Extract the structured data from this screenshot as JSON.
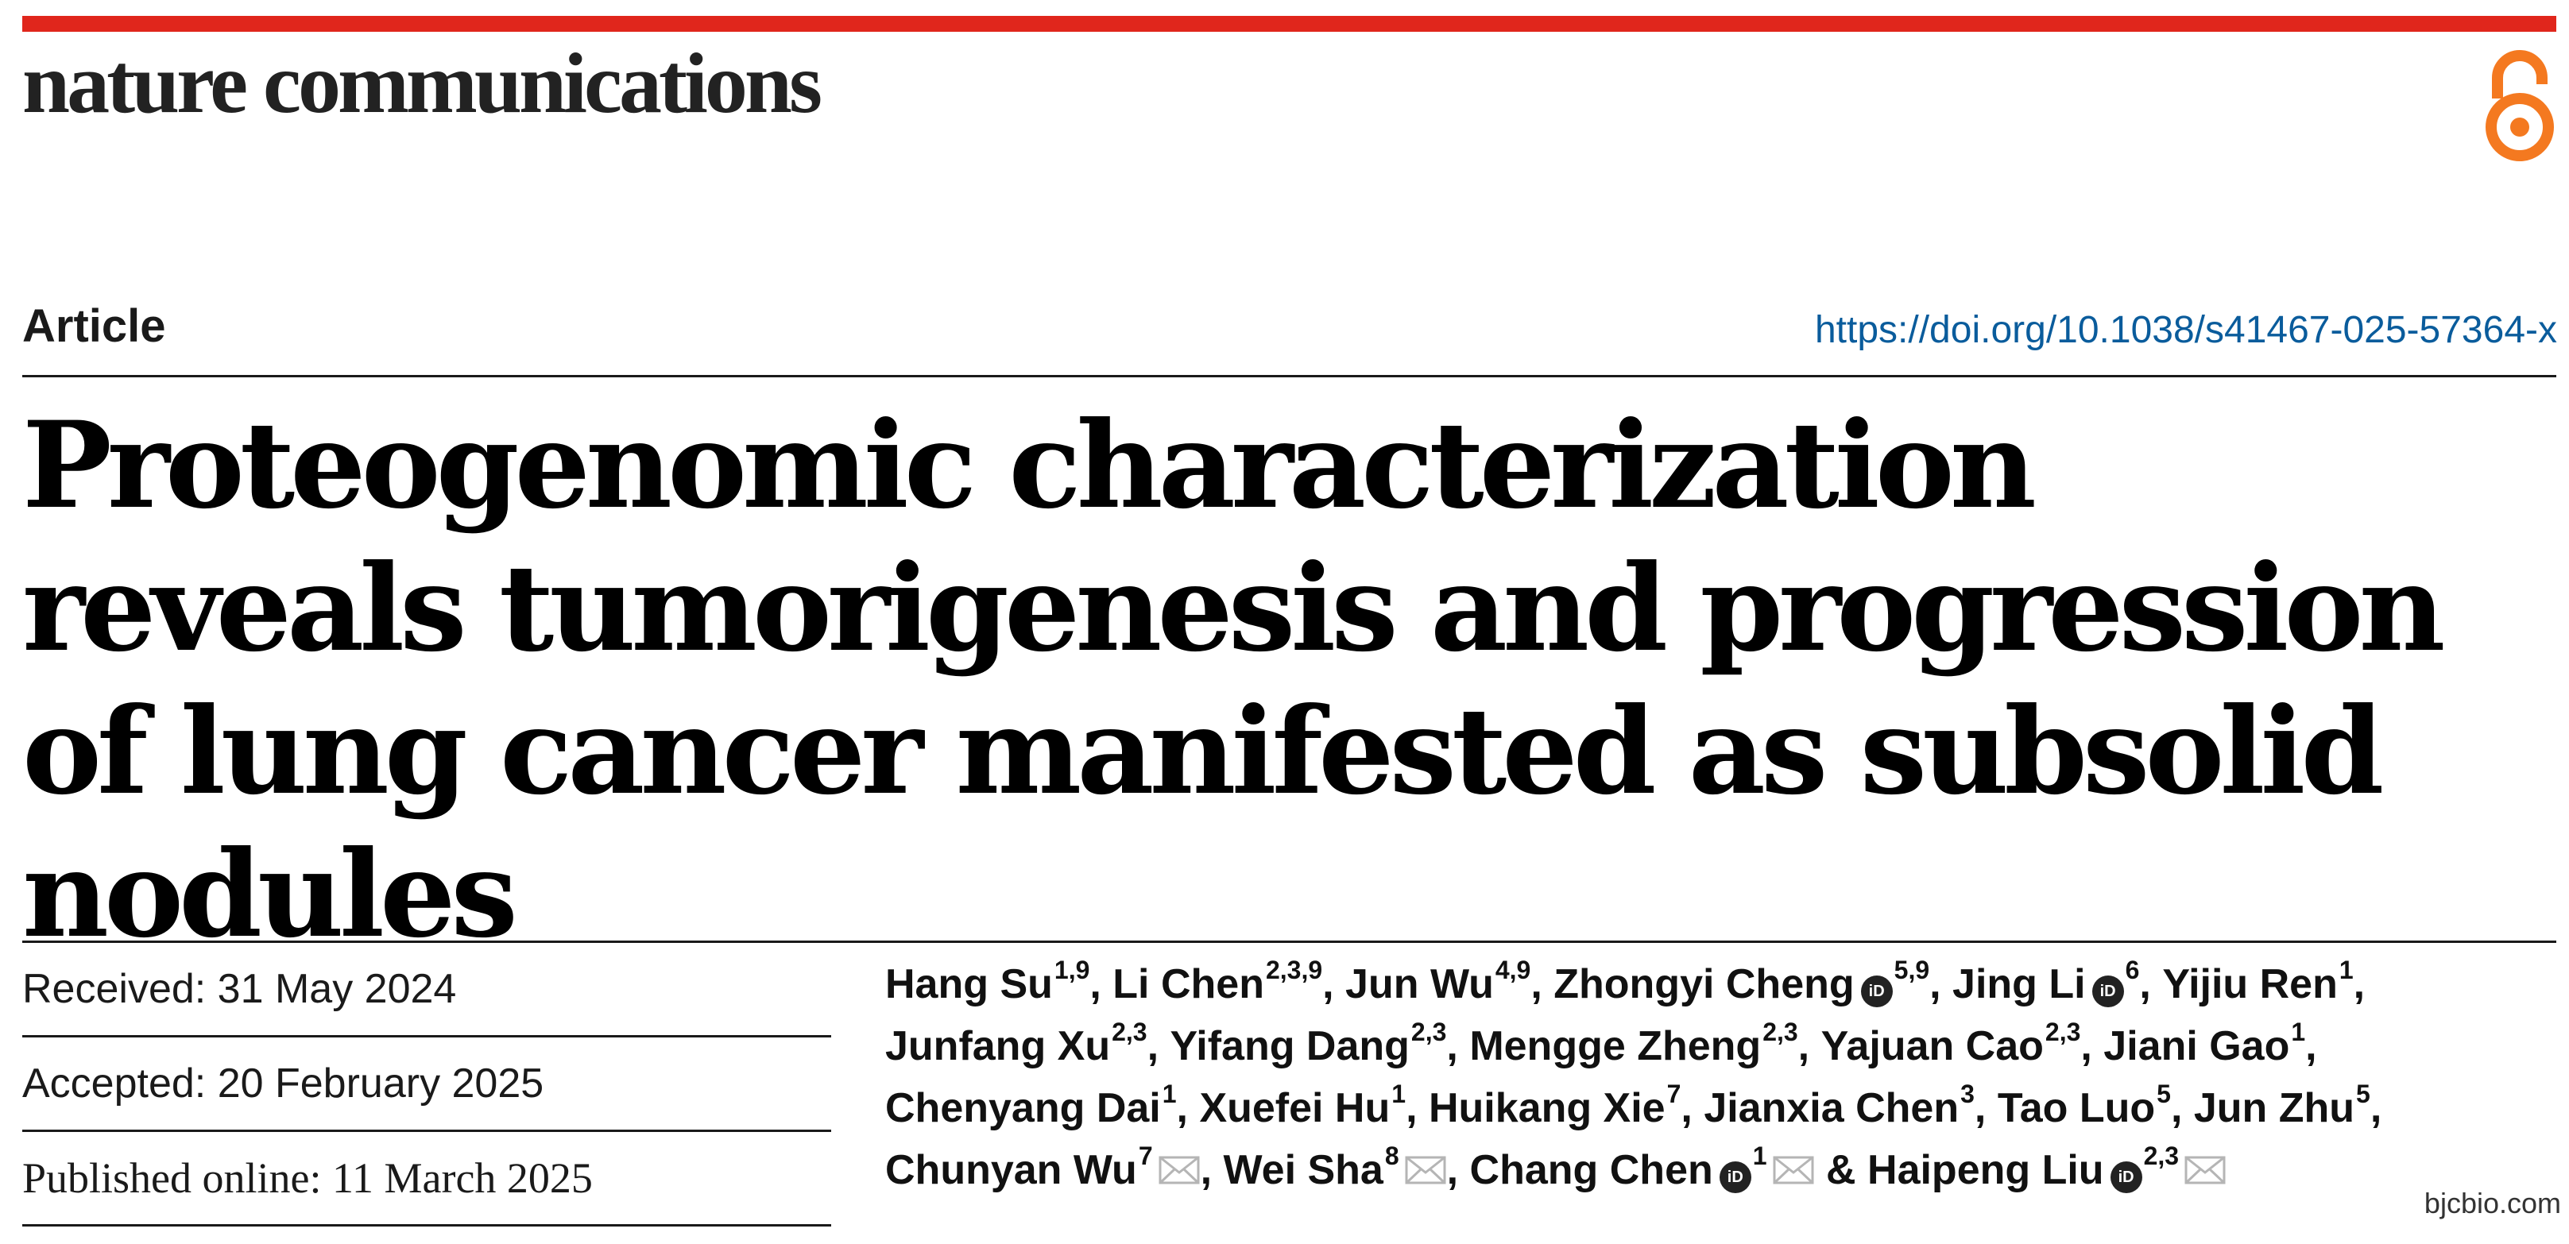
{
  "header": {
    "journal_name": "nature communications",
    "open_access_icon": "open-access-lock-icon",
    "bar_color": "#e0261c",
    "oa_color": "#f47920"
  },
  "article": {
    "type": "Article",
    "doi": "https://doi.org/10.1038/s41467-025-57364-x",
    "doi_color": "#0a5c9c",
    "title": "Proteogenomic characterization reveals tumorigenesis and progression of lung cancer manifested as subsolid nodules"
  },
  "dates": {
    "received": "Received: 31 May 2024",
    "accepted": "Accepted: 20 February 2025",
    "published": "Published online: 11 March 2025"
  },
  "authors": [
    {
      "name": "Hang Su",
      "aff": "1,9",
      "sep": ", "
    },
    {
      "name": "Li Chen",
      "aff": "2,3,9",
      "sep": ", "
    },
    {
      "name": "Jun Wu",
      "aff": "4,9",
      "sep": ", "
    },
    {
      "name": "Zhongyi Cheng",
      "aff": "5,9",
      "orcid": true,
      "sep": ", "
    },
    {
      "name": "Jing Li",
      "aff": "6",
      "orcid": true,
      "sep": ", "
    },
    {
      "name": "Yijiu Ren",
      "aff": "1",
      "sep": ", "
    },
    {
      "name": "Junfang Xu",
      "aff": "2,3",
      "sep": ", "
    },
    {
      "name": "Yifang Dang",
      "aff": "2,3",
      "sep": ", "
    },
    {
      "name": "Mengge Zheng",
      "aff": "2,3",
      "sep": ", "
    },
    {
      "name": "Yajuan Cao",
      "aff": "2,3",
      "sep": ", "
    },
    {
      "name": "Jiani Gao",
      "aff": "1",
      "sep": ", "
    },
    {
      "name": "Chenyang Dai",
      "aff": "1",
      "sep": ", "
    },
    {
      "name": "Xuefei Hu",
      "aff": "1",
      "sep": ", "
    },
    {
      "name": "Huikang Xie",
      "aff": "7",
      "sep": ", "
    },
    {
      "name": "Jianxia Chen",
      "aff": "3",
      "sep": ", "
    },
    {
      "name": "Tao Luo",
      "aff": "5",
      "sep": ", "
    },
    {
      "name": "Jun Zhu",
      "aff": "5",
      "sep": ", "
    },
    {
      "name": "Chunyan Wu",
      "aff": "7",
      "email": true,
      "sep": ", "
    },
    {
      "name": "Wei Sha",
      "aff": "8",
      "email": true,
      "sep": ", "
    },
    {
      "name": "Chang Chen",
      "aff": "1",
      "orcid": true,
      "email": true,
      "sep": " & "
    },
    {
      "name": "Haipeng Liu",
      "aff": "2,3",
      "orcid": true,
      "email": true,
      "sep": ""
    }
  ],
  "orcid_glyph": "iD",
  "watermark": "bjcbio.com"
}
